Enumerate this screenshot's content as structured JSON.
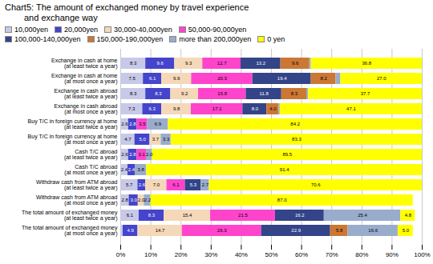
{
  "chart_data": {
    "type": "bar",
    "orientation": "horizontal",
    "stacked": true,
    "title": "Chart5: The amount of exchanged money by travel experience",
    "subtitle": "and exchange way",
    "categories": [
      "Exchange in cash at home (at least twice a year)",
      "Exchange in cash at home (at most once a year)",
      "Exchange in cash abroad (at least twice a year)",
      "Exchange in cash abroad (at most once a year)",
      "Buy T/C in foreign currency at home (at least twice a year)",
      "Buy T/C in foreign currency at home (at most once a year)",
      "Cash T/C abroad (at least twice a year)",
      "Cash T/C abroad (at most once a year)",
      "Withdraw cash from ATM abroad (at least twice a year)",
      "Withdraw cash from ATM abroad (at most once a year)",
      "The total amount of exchanged money (at least twice a year)",
      "The total amount of exchanged money (at most once a year)"
    ],
    "series": [
      {
        "name": "10,000yen",
        "color": "#c8c8e8",
        "values": [
          8.3,
          7.5,
          8.3,
          7.3,
          2.6,
          4.7,
          2.6,
          2.4,
          5.7,
          2.8,
          6.1,
          0.8
        ],
        "value_labels": [
          "8.3",
          "7.5",
          "8.3",
          "7.3",
          "2.6",
          "4.7",
          "2.6",
          "2.4",
          "5.7",
          "2.8",
          "6.1",
          null
        ]
      },
      {
        "name": "20,000yen",
        "color": "#4444cc",
        "values": [
          9.6,
          6.1,
          8.3,
          6.3,
          2.8,
          5.0,
          2.8,
          2.4,
          2.6,
          3.0,
          8.3,
          4.9
        ],
        "value_labels": [
          "9.6",
          "6.1",
          "8.3",
          "6.3",
          "2.8",
          "5.0",
          "2.8",
          "2.4",
          "2.6",
          "3.0",
          "8.3",
          "4.9"
        ]
      },
      {
        "name": "30,000-40,000yen",
        "color": "#f5d8b8",
        "values": [
          9.3,
          9.9,
          9.2,
          9.8,
          0.0,
          3.7,
          0.0,
          0.0,
          7.0,
          2.0,
          15.4,
          14.7
        ],
        "value_labels": [
          "9.3",
          "9.9",
          "9.2",
          "9.8",
          null,
          "3.7",
          null,
          null,
          "7.0",
          "2.0",
          "15.4",
          "14.7"
        ]
      },
      {
        "name": "50,000-90,000yen",
        "color": "#ff44cc",
        "values": [
          12.7,
          20.3,
          15.8,
          17.1,
          3.5,
          0.0,
          3.1,
          0.0,
          6.1,
          0.0,
          21.5,
          26.3
        ],
        "value_labels": [
          "12.7",
          "20.3",
          "15.8",
          "17.1",
          "3.5",
          null,
          "3.1",
          null,
          "6.1",
          null,
          "21.5",
          "26.3"
        ]
      },
      {
        "name": "100,000-140,000yen",
        "color": "#334488",
        "values": [
          13.2,
          19.4,
          11.8,
          8.0,
          0.0,
          0.0,
          0.0,
          0.0,
          5.3,
          0.0,
          16.2,
          22.9
        ],
        "value_labels": [
          "13.2",
          "19.4",
          "11.8",
          "8.0",
          null,
          null,
          null,
          null,
          "5.3",
          null,
          "16.2",
          "22.9"
        ]
      },
      {
        "name": "150,000-190,000yen",
        "color": "#cc7733",
        "values": [
          9.6,
          8.2,
          8.3,
          4.0,
          0.0,
          0.0,
          0.0,
          0.0,
          0.0,
          0.0,
          0.0,
          5.8
        ],
        "value_labels": [
          "9.6",
          "8.2",
          "8.3",
          "4.0",
          null,
          null,
          null,
          null,
          null,
          null,
          null,
          "5.8"
        ]
      },
      {
        "name": "more than 200,000yen",
        "color": "#9aaccc",
        "values": [
          0.5,
          1.6,
          0.6,
          0.4,
          6.9,
          3.3,
          2.0,
          3.8,
          2.7,
          2.2,
          25.4,
          16.6
        ],
        "value_labels": [
          null,
          null,
          null,
          null,
          "6.9",
          "3.3",
          "2.0",
          "3.8",
          "2.7",
          "2.2",
          "25.4",
          "16.6"
        ]
      },
      {
        "name": "0 yen",
        "color": "#ffff00",
        "values": [
          36.8,
          27.0,
          37.7,
          47.1,
          84.2,
          83.3,
          89.5,
          91.4,
          70.6,
          87.0,
          4.8,
          5.0
        ],
        "value_labels": [
          "36.8",
          "27.0",
          "37.7",
          "47.1",
          "84.2",
          "83.3",
          "89.5",
          "91.4",
          "70.6",
          "87.0",
          "4.8",
          "5.0"
        ]
      }
    ],
    "xlim": [
      0,
      100
    ],
    "xticks": [
      {
        "value": 0,
        "label": "0%"
      },
      {
        "value": 10,
        "label": "10%"
      },
      {
        "value": 20,
        "label": "20%"
      },
      {
        "value": 30,
        "label": "30%"
      },
      {
        "value": 40,
        "label": "40%"
      },
      {
        "value": 50,
        "label": "50%"
      },
      {
        "value": 60,
        "label": "60%"
      },
      {
        "value": 70,
        "label": "70%"
      },
      {
        "value": 80,
        "label": "80%"
      },
      {
        "value": 90,
        "label": "90%"
      },
      {
        "value": 100,
        "label": "100%"
      }
    ],
    "grid": true,
    "legend": "upper left",
    "data_labels": true
  }
}
